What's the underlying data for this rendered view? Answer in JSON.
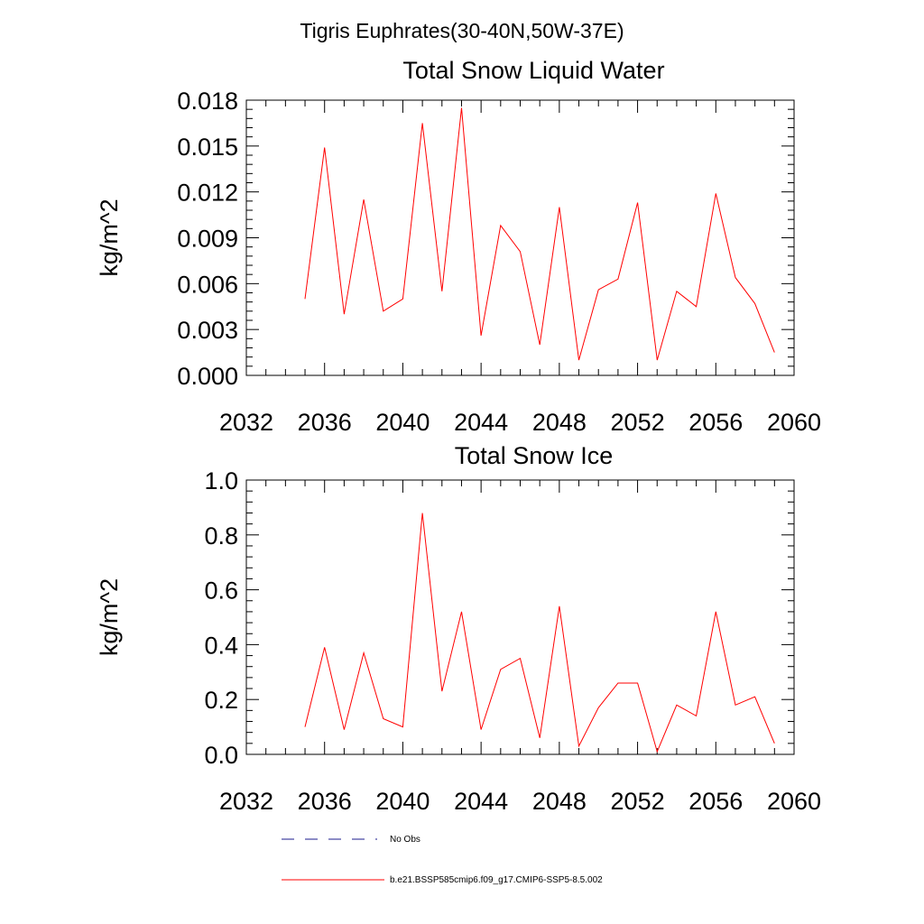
{
  "figure": {
    "suptitle": "Tigris Euphrates(30-40N,50W-37E)"
  },
  "legend": {
    "obs_label": "No Obs",
    "model_label": "b.e21.BSSP585cmip6.f09_g17.CMIP6-SSP5-8.5.002",
    "obs_color": "#1a1a8c",
    "model_color": "#ff0000"
  },
  "chart_data": [
    {
      "type": "line",
      "title": "Total Snow Liquid Water",
      "xlabel": "",
      "ylabel": "kg/m^2",
      "xlim": [
        2032,
        2060
      ],
      "ylim": [
        0,
        0.018
      ],
      "xticks": [
        "2032",
        "2036",
        "2040",
        "2044",
        "2048",
        "2052",
        "2056",
        "2060"
      ],
      "yticks": [
        "0.000",
        "0.003",
        "0.006",
        "0.009",
        "0.012",
        "0.015",
        "0.018"
      ],
      "grid": false,
      "series": [
        {
          "color": "#ff0000",
          "x": [
            2035,
            2036,
            2037,
            2038,
            2039,
            2040,
            2041,
            2042,
            2043,
            2044,
            2045,
            2046,
            2047,
            2048,
            2049,
            2050,
            2051,
            2052,
            2053,
            2054,
            2055,
            2056,
            2057,
            2058,
            2059
          ],
          "values": [
            0.005,
            0.0149,
            0.004,
            0.0115,
            0.0042,
            0.005,
            0.0165,
            0.0055,
            0.0175,
            0.0026,
            0.0098,
            0.0081,
            0.002,
            0.011,
            0.001,
            0.0056,
            0.0063,
            0.0113,
            0.001,
            0.0055,
            0.0045,
            0.0119,
            0.0064,
            0.0047,
            0.0015
          ]
        }
      ]
    },
    {
      "type": "line",
      "title": "Total Snow Ice",
      "xlabel": "",
      "ylabel": "kg/m^2",
      "xlim": [
        2032,
        2060
      ],
      "ylim": [
        0,
        1.0
      ],
      "xticks": [
        "2032",
        "2036",
        "2040",
        "2044",
        "2048",
        "2052",
        "2056",
        "2060"
      ],
      "yticks": [
        "0.0",
        "0.2",
        "0.4",
        "0.6",
        "0.8",
        "1.0"
      ],
      "grid": false,
      "series": [
        {
          "color": "#ff0000",
          "x": [
            2035,
            2036,
            2037,
            2038,
            2039,
            2040,
            2041,
            2042,
            2043,
            2044,
            2045,
            2046,
            2047,
            2048,
            2049,
            2050,
            2051,
            2052,
            2053,
            2054,
            2055,
            2056,
            2057,
            2058,
            2059
          ],
          "values": [
            0.1,
            0.39,
            0.09,
            0.37,
            0.13,
            0.1,
            0.88,
            0.23,
            0.52,
            0.09,
            0.31,
            0.35,
            0.06,
            0.54,
            0.03,
            0.17,
            0.26,
            0.26,
            0.01,
            0.18,
            0.14,
            0.52,
            0.18,
            0.21,
            0.04
          ]
        }
      ]
    }
  ]
}
